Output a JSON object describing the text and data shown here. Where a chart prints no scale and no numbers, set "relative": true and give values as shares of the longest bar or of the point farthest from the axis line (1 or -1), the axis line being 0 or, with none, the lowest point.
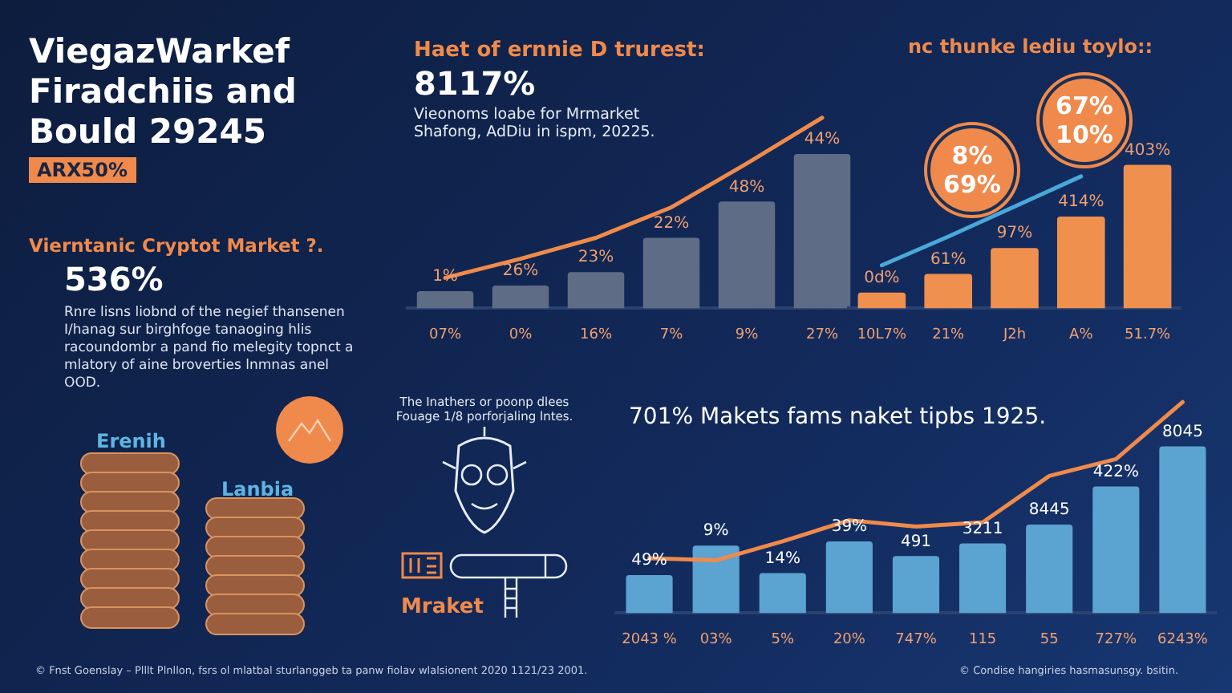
{
  "chart_data": [
    {
      "type": "other",
      "title": "ViegazWarkef Firadchiis and Bould 29245",
      "subtitle": "ARX50%",
      "annotations": [
        "Vierntanic Cryptot Market ?.",
        "536%",
        "Rnre lisns liobnd of the negief thansenen I/hanag sur birghfoge tanaoging hlis racoundombr a pand fio melegity topnct a mlatory of aine broverties lnmnas anel OOD.",
        "Erenih",
        "Lanbia",
        "The Inathers or poonp dlees Fouage 1/8 porforjaling lntes.",
        "Mraket",
        "© Fnst Goenslay – Plllt Plnllon, fsrs ol mlatbal sturlanggeb ta panw fiolav wlalsionent 2020 1121/23 2001."
      ]
    },
    {
      "type": "bar",
      "title": "Haet of ernnie D trurest:",
      "subtitle": "Vieonoms loabe for Mrmarket Shafong, AdDiu in ispm, 20225.",
      "relative": true,
      "marker": "none",
      "annotations": [
        "8117%",
        {
          "text": "1%",
          "x": "07%",
          "y": 0.09
        },
        {
          "text": "26%",
          "x": "0%",
          "y": 0.12
        },
        {
          "text": "23%",
          "x": "16%",
          "y": 0.19
        },
        {
          "text": "22%",
          "x": "7%",
          "y": 0.37
        },
        {
          "text": "48%",
          "x": "9%",
          "y": 0.56
        },
        {
          "text": "44%",
          "x": "27%",
          "y": 0.81
        }
      ],
      "categories": [
        "07%",
        "0%",
        "16%",
        "7%",
        "9%",
        "27%"
      ],
      "series": [
        {
          "type": "bar",
          "color": "#5e6c86",
          "values": [
            0.09,
            0.12,
            0.19,
            0.37,
            0.56,
            0.81
          ]
        },
        {
          "type": "line",
          "color": "#f08a4b",
          "values": [
            0.16,
            0.26,
            0.37,
            0.53,
            0.76,
            1
          ]
        }
      ]
    },
    {
      "type": "bar",
      "title": "nc thunke lediu toylo::",
      "relative": true,
      "marker": "none",
      "annotations": [
        "8% 69%",
        "67% 10%",
        {
          "text": "0d%",
          "x": "10L7%",
          "y": 0.11
        },
        {
          "text": "61%",
          "x": "21%",
          "y": 0.24
        },
        {
          "text": "97%",
          "x": "J2h",
          "y": 0.42
        },
        {
          "text": "414%",
          "x": "A%",
          "y": 0.64
        },
        {
          "text": "403%",
          "x": "51.7%",
          "y": 1
        }
      ],
      "categories": [
        "10L7%",
        "21%",
        "J2h",
        "A%",
        "51.7%"
      ],
      "series": [
        {
          "type": "bar",
          "color": "#f0904f",
          "values": [
            0.11,
            0.24,
            0.42,
            0.64,
            1
          ]
        },
        {
          "type": "line",
          "color": "#4aa8d8",
          "values": [
            0.3,
            0.5,
            0.71,
            0.92,
            null
          ]
        }
      ]
    },
    {
      "type": "bar",
      "title": "701% Makets fams naket tipbs 1925.",
      "relative": true,
      "marker": "none",
      "annotations": [
        "© Condise hangiries hasmasunsgy. bsitin.",
        {
          "text": "49%",
          "x": "2043 %",
          "y": 0.18
        },
        {
          "text": "9%",
          "x": "03%",
          "y": 0.32
        },
        {
          "text": "14%",
          "x": "5%",
          "y": 0.19
        },
        {
          "text": "39%",
          "x": "20%",
          "y": 0.34
        },
        {
          "text": "491",
          "x": "747%",
          "y": 0.27
        },
        {
          "text": "3211",
          "x": "115",
          "y": 0.33
        },
        {
          "text": "8445",
          "x": "55",
          "y": 0.42
        },
        {
          "text": "422%",
          "x": "727%",
          "y": 0.6
        },
        {
          "text": "8045",
          "x": "6243%",
          "y": 0.79
        }
      ],
      "categories": [
        "2043 %",
        "03%",
        "5%",
        "20%",
        "747%",
        "115",
        "55",
        "727%",
        "6243%"
      ],
      "series": [
        {
          "type": "bar",
          "color": "#5ba3d0",
          "values": [
            0.18,
            0.32,
            0.19,
            0.34,
            0.27,
            0.33,
            0.42,
            0.6,
            0.79
          ]
        },
        {
          "type": "line",
          "color": "#f08a4b",
          "values": [
            0.26,
            0.25,
            0.34,
            0.44,
            0.41,
            0.43,
            0.65,
            0.73,
            1
          ]
        }
      ]
    }
  ]
}
